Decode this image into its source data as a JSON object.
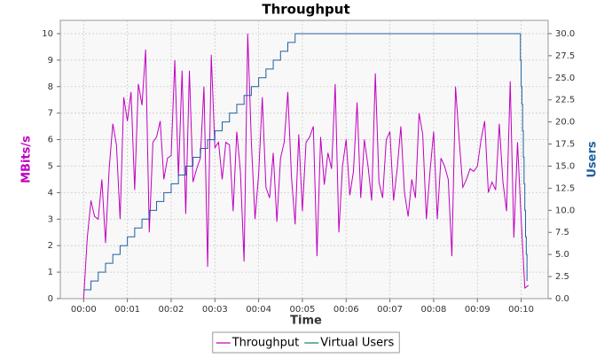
{
  "chart_data": {
    "type": "line",
    "title": "Throughput",
    "xlabel": "Time",
    "ylabel": "MBits/s",
    "y2label": "Users",
    "xlim": [
      -32,
      637
    ],
    "ylim": [
      0,
      10.5
    ],
    "y2lim": [
      0,
      31.5
    ],
    "xticks": [
      {
        "value": 0,
        "label": "00:00"
      },
      {
        "value": 60,
        "label": "00:01"
      },
      {
        "value": 120,
        "label": "00:02"
      },
      {
        "value": 180,
        "label": "00:03"
      },
      {
        "value": 240,
        "label": "00:04"
      },
      {
        "value": 300,
        "label": "00:05"
      },
      {
        "value": 360,
        "label": "00:06"
      },
      {
        "value": 420,
        "label": "00:07"
      },
      {
        "value": 480,
        "label": "00:08"
      },
      {
        "value": 540,
        "label": "00:09"
      },
      {
        "value": 600,
        "label": "00:10"
      }
    ],
    "yticks": [
      0,
      1,
      2,
      3,
      4,
      5,
      6,
      7,
      8,
      9,
      10
    ],
    "y2ticks": [
      {
        "value": 0,
        "label": "0.0"
      },
      2.5,
      {
        "value": 5,
        "label": "5.0"
      },
      7.5,
      {
        "value": 10,
        "label": "10.0"
      },
      12.5,
      {
        "value": 15,
        "label": "15.0"
      },
      17.5,
      {
        "value": 20,
        "label": "20.0"
      },
      22.5,
      {
        "value": 25,
        "label": "25.0"
      },
      27.5,
      {
        "value": 30,
        "label": "30.0"
      }
    ],
    "grid": true,
    "legend": "bottom",
    "series": [
      {
        "name": "Throughput",
        "color": "#c000c0",
        "axis": "y",
        "x": [
          0,
          5,
          10,
          15,
          20,
          25,
          30,
          35,
          40,
          45,
          50,
          55,
          60,
          65,
          70,
          75,
          80,
          85,
          90,
          95,
          100,
          105,
          110,
          115,
          120,
          125,
          130,
          135,
          140,
          145,
          150,
          155,
          160,
          165,
          170,
          175,
          180,
          185,
          190,
          195,
          200,
          205,
          210,
          215,
          220,
          225,
          230,
          235,
          240,
          245,
          250,
          255,
          260,
          265,
          270,
          275,
          280,
          285,
          290,
          295,
          300,
          305,
          310,
          315,
          320,
          325,
          330,
          335,
          340,
          345,
          350,
          355,
          360,
          365,
          370,
          375,
          380,
          385,
          390,
          395,
          400,
          405,
          410,
          415,
          420,
          425,
          430,
          435,
          440,
          445,
          450,
          455,
          460,
          465,
          470,
          475,
          480,
          485,
          490,
          495,
          500,
          505,
          510,
          515,
          520,
          525,
          530,
          535,
          540,
          545,
          550,
          555,
          560,
          565,
          570,
          575,
          580,
          585,
          590,
          595,
          600,
          605,
          610
        ],
        "values": [
          0,
          2.3,
          3.7,
          3.1,
          3.0,
          4.5,
          2.1,
          4.9,
          6.6,
          5.8,
          3.0,
          7.6,
          6.7,
          7.8,
          4.1,
          8.1,
          7.3,
          9.4,
          2.5,
          5.9,
          6.1,
          6.7,
          4.5,
          5.3,
          5.4,
          9.0,
          4.6,
          8.6,
          3.2,
          8.6,
          4.4,
          4.9,
          5.3,
          8.0,
          1.2,
          9.2,
          5.7,
          5.9,
          4.5,
          5.9,
          5.8,
          3.3,
          6.3,
          4.8,
          1.4,
          10.0,
          5.9,
          3.0,
          4.7,
          7.6,
          4.2,
          3.8,
          5.5,
          2.9,
          5.3,
          5.9,
          7.8,
          4.6,
          2.8,
          6.2,
          3.3,
          5.9,
          6.1,
          6.5,
          1.6,
          6.1,
          4.3,
          5.5,
          4.9,
          8.1,
          2.5,
          5.0,
          6.0,
          3.9,
          4.8,
          7.4,
          3.8,
          6.0,
          5.0,
          3.7,
          8.5,
          4.4,
          3.8,
          6.0,
          6.3,
          3.7,
          4.9,
          6.5,
          4.0,
          3.1,
          4.5,
          3.8,
          7.0,
          6.2,
          3.0,
          4.8,
          6.3,
          3.0,
          5.3,
          5.0,
          4.5,
          1.6,
          8.0,
          6.0,
          4.2,
          4.5,
          4.9,
          4.8,
          5.0,
          6.0,
          6.7,
          4.0,
          4.4,
          4.1,
          6.6,
          4.4,
          3.3,
          8.2,
          2.3,
          5.9,
          3.0,
          0.4,
          0.5
        ]
      },
      {
        "name": "Virtual Users",
        "color": "#2060a0",
        "legend_color": "#208070",
        "axis": "y2",
        "step": true,
        "x": [
          0,
          10,
          20,
          30,
          40,
          50,
          60,
          70,
          80,
          90,
          100,
          110,
          120,
          130,
          140,
          150,
          160,
          170,
          180,
          190,
          200,
          210,
          220,
          230,
          240,
          250,
          260,
          270,
          280,
          290,
          597,
          599,
          600,
          601,
          602,
          603,
          604,
          605,
          606,
          607,
          608
        ],
        "values": [
          1,
          2,
          3,
          4,
          5,
          6,
          7,
          8,
          9,
          10,
          11,
          12,
          13,
          14,
          15,
          16,
          17,
          18,
          19,
          20,
          21,
          22,
          23,
          24,
          25,
          26,
          27,
          28,
          29,
          30,
          30,
          27,
          24,
          22,
          19,
          16,
          13,
          10,
          7,
          5,
          2
        ]
      }
    ]
  }
}
